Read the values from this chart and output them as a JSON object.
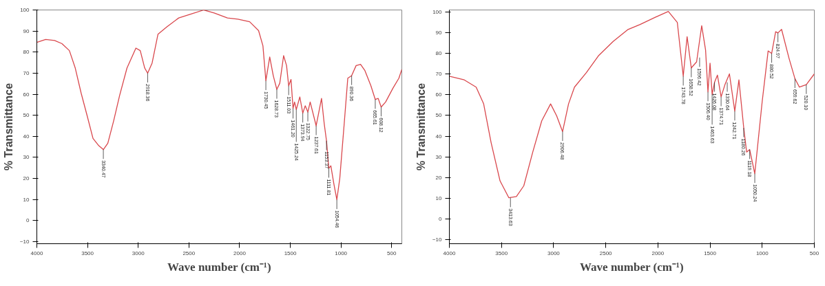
{
  "chart_data": [
    {
      "type": "line",
      "xlabel": "Wave number (cm⁻¹)",
      "ylabel": "% Transmittance",
      "xlim": [
        4000,
        400
      ],
      "ylim": [
        -11,
        100
      ],
      "xticks": [
        4000,
        3500,
        3000,
        2500,
        2000,
        1500,
        1000,
        500
      ],
      "yticks": [
        -10,
        0,
        10,
        20,
        30,
        40,
        50,
        60,
        70,
        80,
        90,
        100
      ],
      "grid": false,
      "marker": "none",
      "line_style": "solid",
      "series": [
        {
          "color": "#d9474c",
          "x": [
            4000,
            3913,
            3825,
            3752,
            3679,
            3621,
            3563,
            3504,
            3446,
            3388,
            3344,
            3300,
            3242,
            3184,
            3111,
            3023,
            2980,
            2936,
            2907,
            2863,
            2805,
            2717,
            2601,
            2484,
            2353,
            2251,
            2120,
            2017,
            1901,
            1813,
            1770,
            1741,
            1703,
            1668,
            1633,
            1604,
            1566,
            1537,
            1516,
            1493,
            1473,
            1458,
            1441,
            1406,
            1377,
            1353,
            1327,
            1304,
            1245,
            1192,
            1166,
            1143,
            1120,
            1100,
            1071,
            1041,
            1012,
            968,
            933,
            895,
            851,
            807,
            764,
            705,
            662,
            633,
            604,
            560,
            487,
            429,
            400
          ],
          "values": [
            84.6,
            86,
            85.5,
            84,
            80.7,
            72.4,
            60.5,
            49.8,
            39,
            35.5,
            33.7,
            36.7,
            47.4,
            59.3,
            72.4,
            81.9,
            80.7,
            72.4,
            70,
            74.8,
            88.5,
            92,
            96.2,
            98,
            100,
            98.6,
            96.2,
            95.6,
            94.4,
            90.2,
            83,
            66.4,
            77.7,
            68.8,
            62.3,
            65.2,
            78.3,
            73.6,
            64,
            67,
            53.3,
            56.3,
            52.7,
            58.7,
            51,
            54.5,
            51.5,
            56.3,
            45,
            58,
            46.2,
            37.9,
            24.8,
            26,
            17.6,
            9.9,
            20,
            46.2,
            67.6,
            68.8,
            73.6,
            74.2,
            71.2,
            64,
            57.5,
            58,
            53.9,
            56.3,
            62.9,
            67.6,
            71.8
          ]
        }
      ],
      "annotations": [
        {
          "text": "3340.47",
          "x": 3344,
          "y": 33.7
        },
        {
          "text": "2918.36",
          "x": 2907,
          "y": 70
        },
        {
          "text": "1730.45",
          "x": 1741,
          "y": 66.4
        },
        {
          "text": "1628.73",
          "x": 1633,
          "y": 62.3
        },
        {
          "text": "1511.03",
          "x": 1516,
          "y": 64
        },
        {
          "text": "1461.20",
          "x": 1473,
          "y": 53.3
        },
        {
          "text": "1425.24",
          "x": 1441,
          "y": 52.7
        },
        {
          "text": "1373.94",
          "x": 1377,
          "y": 51
        },
        {
          "text": "1322.75",
          "x": 1327,
          "y": 51.5
        },
        {
          "text": "1237.61",
          "x": 1245,
          "y": 45
        },
        {
          "text": "1153.37",
          "x": 1143,
          "y": 37.9
        },
        {
          "text": "1111.81",
          "x": 1120,
          "y": 24.8
        },
        {
          "text": "1054.46",
          "x": 1041,
          "y": 9.9
        },
        {
          "text": "890.36",
          "x": 895,
          "y": 68.8
        },
        {
          "text": "665.61",
          "x": 662,
          "y": 57.5
        },
        {
          "text": "608.12",
          "x": 604,
          "y": 53.9
        }
      ]
    },
    {
      "type": "line",
      "xlabel": "Wave number (cm⁻¹)",
      "ylabel": "% Transmittance",
      "xlim": [
        4000,
        500
      ],
      "ylim": [
        -12,
        101
      ],
      "xticks": [
        4000,
        3500,
        3000,
        2500,
        2000,
        1500,
        1000,
        500
      ],
      "yticks": [
        -10,
        0,
        10,
        20,
        30,
        40,
        50,
        60,
        70,
        80,
        90,
        100
      ],
      "grid": false,
      "marker": "none",
      "line_style": "solid",
      "series": [
        {
          "color": "#d9474c",
          "x": [
            4000,
            3857,
            3743,
            3671,
            3600,
            3514,
            3429,
            3357,
            3286,
            3200,
            3114,
            3029,
            2971,
            2914,
            2857,
            2800,
            2686,
            2571,
            2429,
            2286,
            2171,
            2029,
            1900,
            1814,
            1757,
            1720,
            1680,
            1629,
            1580,
            1543,
            1520,
            1500,
            1480,
            1457,
            1429,
            1394,
            1357,
            1314,
            1263,
            1223,
            1177,
            1149,
            1120,
            1071,
            1000,
            943,
            909,
            871,
            849,
            814,
            743,
            686,
            643,
            577,
            500
          ],
          "values": [
            69,
            67.2,
            63.7,
            55.6,
            37,
            18.4,
            10.2,
            10.8,
            16,
            32.3,
            47.4,
            55.6,
            49.8,
            42.2,
            55.6,
            63.7,
            70.7,
            78.8,
            85.8,
            91.6,
            94,
            97.4,
            100.3,
            95,
            69,
            88.1,
            73,
            75.9,
            93.4,
            81.7,
            61.4,
            75.3,
            60.2,
            66,
            69.5,
            59,
            64.9,
            70.1,
            52.1,
            67.2,
            44,
            32.3,
            33.5,
            21.9,
            56.7,
            81.2,
            80,
            90.5,
            89.9,
            91.6,
            77.7,
            67.8,
            63.7,
            64.9,
            70.1
          ]
        }
      ],
      "annotations": [
        {
          "text": "3413.63",
          "x": 3414,
          "y": 10.2
        },
        {
          "text": "2906.48",
          "x": 2914,
          "y": 42.2
        },
        {
          "text": "1743.78",
          "x": 1757,
          "y": 69
        },
        {
          "text": "1658.52",
          "x": 1680,
          "y": 73
        },
        {
          "text": "1596.42",
          "x": 1600,
          "y": 78
        },
        {
          "text": "1506.40",
          "x": 1520,
          "y": 61.4
        },
        {
          "text": "1463.63",
          "x": 1480,
          "y": 60.2
        },
        {
          "text": "1426.08",
          "x": 1457,
          "y": 66
        },
        {
          "text": "1374.71",
          "x": 1394,
          "y": 59
        },
        {
          "text": "1330.64",
          "x": 1335,
          "y": 66
        },
        {
          "text": "1242.71",
          "x": 1263,
          "y": 52.1
        },
        {
          "text": "1180.26",
          "x": 1177,
          "y": 44
        },
        {
          "text": "1119.18",
          "x": 1120,
          "y": 33.5
        },
        {
          "text": "1050.24",
          "x": 1071,
          "y": 21.9
        },
        {
          "text": "880.52",
          "x": 909,
          "y": 80
        },
        {
          "text": "824.97",
          "x": 849,
          "y": 89.9
        },
        {
          "text": "659.62",
          "x": 686,
          "y": 67.8
        },
        {
          "text": "520.10",
          "x": 577,
          "y": 64.9
        }
      ]
    }
  ]
}
